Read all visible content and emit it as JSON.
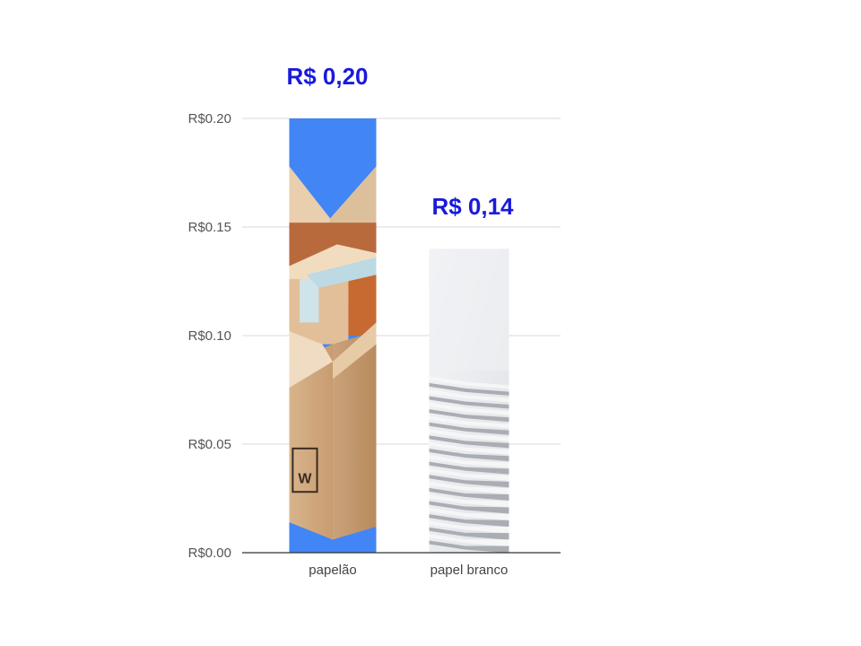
{
  "chart_data": {
    "type": "bar",
    "categories": [
      "papelão",
      "papel branco"
    ],
    "values": [
      0.2,
      0.14
    ],
    "data_labels": [
      "R$ 0,20",
      "R$ 0,14"
    ],
    "y_ticks": [
      0.0,
      0.05,
      0.1,
      0.15,
      0.2
    ],
    "y_tick_labels": [
      "R$0.00",
      "R$0.05",
      "R$0.10",
      "R$0.15",
      "R$0.20"
    ],
    "ylim": [
      0,
      0.2
    ],
    "grid": true,
    "legend": "none",
    "title": "",
    "xlabel": "",
    "ylabel": "",
    "colors": {
      "bar_cardboard": "#4285f4",
      "data_label": "#1a1adc",
      "gridline": "#d9d9d9",
      "baseline": "#333333"
    },
    "bar_fill_images": [
      "cardboard-box-icon",
      "paper-stack-icon"
    ]
  }
}
